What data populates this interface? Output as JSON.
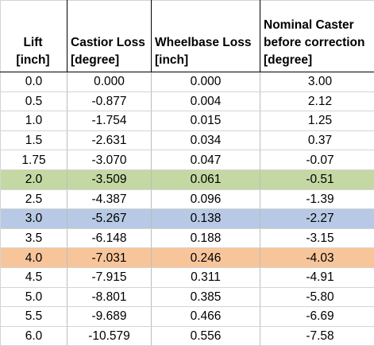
{
  "headers": [
    {
      "line1": "Lift",
      "line2": "[inch]"
    },
    {
      "line1": "Castior Loss",
      "line2": "[degree]"
    },
    {
      "line1": "Wheelbase Loss",
      "line2": "[inch]"
    },
    {
      "line1": "Nominal Caster before correction",
      "line2": "[degree]"
    }
  ],
  "highlight_colors": {
    "green": "#c4d8a3",
    "blue": "#b7c9e4",
    "orange": "#f8c59b"
  },
  "rows": [
    {
      "cells": [
        "0.0",
        "0.000",
        "0.000",
        "3.00"
      ],
      "highlight": ""
    },
    {
      "cells": [
        "0.5",
        "-0.877",
        "0.004",
        "2.12"
      ],
      "highlight": ""
    },
    {
      "cells": [
        "1.0",
        "-1.754",
        "0.015",
        "1.25"
      ],
      "highlight": ""
    },
    {
      "cells": [
        "1.5",
        "-2.631",
        "0.034",
        "0.37"
      ],
      "highlight": ""
    },
    {
      "cells": [
        "1.75",
        "-3.070",
        "0.047",
        "-0.07"
      ],
      "highlight": ""
    },
    {
      "cells": [
        "2.0",
        "-3.509",
        "0.061",
        "-0.51"
      ],
      "highlight": "green"
    },
    {
      "cells": [
        "2.5",
        "-4.387",
        "0.096",
        "-1.39"
      ],
      "highlight": ""
    },
    {
      "cells": [
        "3.0",
        "-5.267",
        "0.138",
        "-2.27"
      ],
      "highlight": "blue"
    },
    {
      "cells": [
        "3.5",
        "-6.148",
        "0.188",
        "-3.15"
      ],
      "highlight": ""
    },
    {
      "cells": [
        "4.0",
        "-7.031",
        "0.246",
        "-4.03"
      ],
      "highlight": "orange"
    },
    {
      "cells": [
        "4.5",
        "-7.915",
        "0.311",
        "-4.91"
      ],
      "highlight": ""
    },
    {
      "cells": [
        "5.0",
        "-8.801",
        "0.385",
        "-5.80"
      ],
      "highlight": ""
    },
    {
      "cells": [
        "5.5",
        "-9.689",
        "0.466",
        "-6.69"
      ],
      "highlight": ""
    },
    {
      "cells": [
        "6.0",
        "-10.579",
        "0.556",
        "-7.58"
      ],
      "highlight": ""
    }
  ]
}
